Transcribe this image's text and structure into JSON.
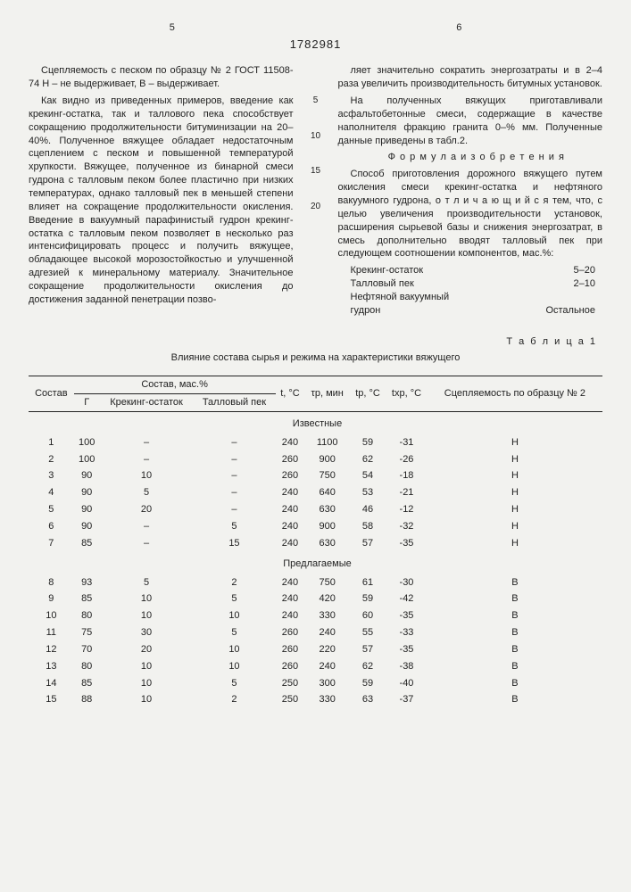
{
  "pageLeft": "5",
  "pageRight": "6",
  "docNumber": "1782981",
  "left": {
    "p1": "Сцепляемость с песком по образцу № 2 ГОСТ 11508-74 Н – не выдерживает, В – выдерживает.",
    "p2": "Как видно из приведенных примеров, введение как крекинг-остатка, так и таллового пека способствует сокращению продолжительности битуминизации на 20–40%. Полученное вяжущее обладает недостаточным сцеплением с песком и повышенной температурой хрупкости. Вяжущее, полученное из бинарной смеси гудрона с талловым пеком более пластично при низких температурах, однако талловый пек в меньшей степени влияет на сокращение продолжительности окисления. Введение в вакуумный парафинистый гудрон крекинг-остатка с талловым пеком позволяет в несколько раз интенсифицировать процесс и получить вяжущее, обладающее высокой морозостойкостью и улучшенной адгезией к минеральному материалу. Значительное сокращение продолжительности окисления до достижения заданной пенетрации позво-"
  },
  "right": {
    "p1": "ляет значительно сократить энергозатраты и в 2–4 раза увеличить производительность битумных установок.",
    "p2": "На полученных вяжущих приготавливали асфальтобетонные смеси, содержащие в качестве наполнителя фракцию гранита 0–% мм. Полученные данные приведены в табл.2.",
    "formulaTitle": "Ф о р м у л а  и з о б р е т е н и я",
    "p3": "Способ приготовления дорожного вяжущего путем окисления смеси крекинг-остатка и нефтяного вакуумного гудрона, о т л и ч а ю щ и й с я  тем, что, с целью увеличения производительности установок, расширения сырьевой базы и снижения энергозатрат, в смесь дополнительно вводят талловый пек при следующем соотношении компонентов, мас.%:",
    "ratios": [
      {
        "name": "Крекинг-остаток",
        "val": "5–20"
      },
      {
        "name": "Талловый пек",
        "val": "2–10"
      },
      {
        "name": "Нефтяной вакуумный",
        "val": ""
      },
      {
        "name": "гудрон",
        "val": "Остальное"
      }
    ]
  },
  "lineNums": [
    "5",
    "10",
    "15",
    "20"
  ],
  "table": {
    "title": "Т а б л и ц а 1",
    "caption": "Влияние состава сырья и режима на характеристики вяжущего",
    "head": {
      "c1": "Состав",
      "c2": "Состав, мас.%",
      "c2a": "Г",
      "c2b": "Крекинг-остаток",
      "c2c": "Талловый пек",
      "c3": "t, °C",
      "c4": "τр, мин",
      "c5": "tр, °C",
      "c6": "tхр, °C",
      "c7": "Сцепляемость по образцу № 2"
    },
    "g1": "Известные",
    "g2": "Предлагаемые",
    "rows1": [
      [
        "1",
        "100",
        "–",
        "–",
        "240",
        "1100",
        "59",
        "-31",
        "Н"
      ],
      [
        "2",
        "100",
        "–",
        "–",
        "260",
        "900",
        "62",
        "-26",
        "Н"
      ],
      [
        "3",
        "90",
        "10",
        "–",
        "260",
        "750",
        "54",
        "-18",
        "Н"
      ],
      [
        "4",
        "90",
        "5",
        "–",
        "240",
        "640",
        "53",
        "-21",
        "Н"
      ],
      [
        "5",
        "90",
        "20",
        "–",
        "240",
        "630",
        "46",
        "-12",
        "Н"
      ],
      [
        "6",
        "90",
        "–",
        "5",
        "240",
        "900",
        "58",
        "-32",
        "Н"
      ],
      [
        "7",
        "85",
        "–",
        "15",
        "240",
        "630",
        "57",
        "-35",
        "Н"
      ]
    ],
    "rows2": [
      [
        "8",
        "93",
        "5",
        "2",
        "240",
        "750",
        "61",
        "-30",
        "В"
      ],
      [
        "9",
        "85",
        "10",
        "5",
        "240",
        "420",
        "59",
        "-42",
        "В"
      ],
      [
        "10",
        "80",
        "10",
        "10",
        "240",
        "330",
        "60",
        "-35",
        "В"
      ],
      [
        "11",
        "75",
        "30",
        "5",
        "260",
        "240",
        "55",
        "-33",
        "В"
      ],
      [
        "12",
        "70",
        "20",
        "10",
        "260",
        "220",
        "57",
        "-35",
        "В"
      ],
      [
        "13",
        "80",
        "10",
        "10",
        "260",
        "240",
        "62",
        "-38",
        "В"
      ],
      [
        "14",
        "85",
        "10",
        "5",
        "250",
        "300",
        "59",
        "-40",
        "В"
      ],
      [
        "15",
        "88",
        "10",
        "2",
        "250",
        "330",
        "63",
        "-37",
        "В"
      ]
    ]
  }
}
